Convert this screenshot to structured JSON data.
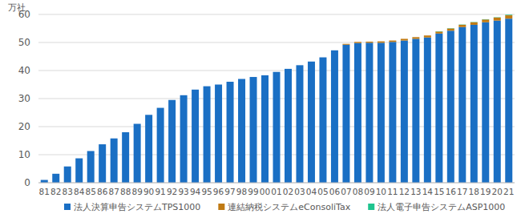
{
  "chart_data": {
    "type": "bar",
    "stacked": true,
    "y_label": "万社",
    "categories": [
      "81",
      "82",
      "83",
      "84",
      "85",
      "86",
      "87",
      "88",
      "89",
      "90",
      "91",
      "92",
      "93",
      "94",
      "95",
      "96",
      "97",
      "98",
      "99",
      "00",
      "01",
      "02",
      "03",
      "04",
      "05",
      "06",
      "07",
      "08",
      "09",
      "10",
      "11",
      "12",
      "13",
      "14",
      "15",
      "16",
      "17",
      "18",
      "19",
      "20",
      "21"
    ],
    "series": [
      {
        "name": "法人決算申告システムTPS1000",
        "color": "#1a6fc4",
        "values": [
          1.0,
          3.2,
          5.8,
          8.7,
          11.3,
          13.7,
          15.8,
          18.0,
          21.0,
          24.2,
          26.7,
          29.5,
          31.2,
          33.2,
          34.4,
          35.0,
          36.0,
          37.0,
          37.7,
          38.3,
          39.5,
          40.6,
          41.9,
          43.2,
          44.7,
          47.2,
          49.2,
          49.8,
          49.9,
          49.9,
          50.2,
          50.7,
          51.3,
          51.8,
          53.2,
          54.2,
          55.5,
          56.3,
          57.2,
          57.8,
          58.5
        ]
      },
      {
        "name": "連結納税システムeConsoliTax",
        "color": "#c07a13",
        "values": [
          0,
          0,
          0,
          0,
          0,
          0,
          0,
          0,
          0,
          0,
          0,
          0,
          0,
          0,
          0,
          0,
          0,
          0,
          0,
          0,
          0,
          0,
          0,
          0,
          0,
          0,
          0.3,
          0.4,
          0.4,
          0.5,
          0.5,
          0.6,
          0.6,
          0.7,
          0.7,
          0.8,
          0.8,
          0.9,
          1.0,
          1.1,
          1.2
        ]
      },
      {
        "name": "法人電子申告システムASP1000",
        "color": "#1fc48e",
        "values": [
          0,
          0,
          0,
          0,
          0,
          0,
          0,
          0,
          0,
          0,
          0,
          0,
          0,
          0,
          0,
          0,
          0,
          0,
          0,
          0,
          0,
          0,
          0,
          0,
          0,
          0,
          0,
          0,
          0,
          0,
          0,
          0,
          0,
          0,
          0.1,
          0.1,
          0.1,
          0.1,
          0.1,
          0.1,
          0.2
        ]
      }
    ],
    "ylim": [
      0,
      60
    ],
    "yticks": [
      0,
      10,
      20,
      30,
      40,
      50,
      60
    ],
    "grid": true,
    "legend": "bottom"
  }
}
